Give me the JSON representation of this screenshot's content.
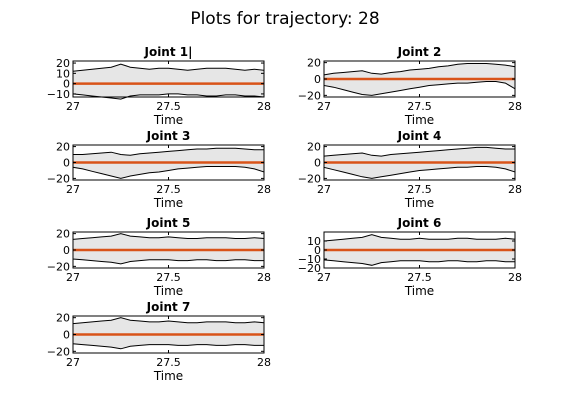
{
  "figure_title": "Plots for trajectory: 28",
  "chart_data": [
    {
      "type": "area",
      "title": "Joint 1|",
      "xlabel": "Time",
      "xlim": [
        27,
        28
      ],
      "ylim": [
        -13,
        22
      ],
      "xticks": [
        27,
        27.5,
        28
      ],
      "yticks": [
        20,
        10,
        0,
        -10
      ],
      "x": [
        27,
        27.05,
        27.1,
        27.15,
        27.2,
        27.25,
        27.3,
        27.35,
        27.4,
        27.45,
        27.5,
        27.55,
        27.6,
        27.65,
        27.7,
        27.75,
        27.8,
        27.85,
        27.9,
        27.95,
        28
      ],
      "series": [
        {
          "role": "upper",
          "values": [
            12,
            13,
            14,
            15,
            16,
            19,
            16,
            15,
            14,
            15,
            15,
            14,
            13,
            14,
            15,
            15,
            15,
            14,
            13,
            14,
            13
          ]
        },
        {
          "role": "mean",
          "values": [
            0,
            0,
            0,
            0,
            0,
            0,
            0,
            0,
            0,
            0,
            0,
            0,
            0,
            0,
            0,
            0,
            0,
            0,
            0,
            0,
            0
          ]
        },
        {
          "role": "lower",
          "values": [
            -10,
            -11,
            -12,
            -13,
            -14,
            -15,
            -12,
            -11,
            -11,
            -11,
            -10,
            -10,
            -11,
            -11,
            -12,
            -12,
            -11,
            -11,
            -12,
            -12,
            -13
          ]
        }
      ]
    },
    {
      "type": "area",
      "title": "Joint 2",
      "xlabel": "Time",
      "xlim": [
        27,
        28
      ],
      "ylim": [
        -22,
        22
      ],
      "xticks": [
        27,
        27.5,
        28
      ],
      "yticks": [
        20,
        0,
        -20
      ],
      "x": [
        27,
        27.05,
        27.1,
        27.15,
        27.2,
        27.25,
        27.3,
        27.35,
        27.4,
        27.45,
        27.5,
        27.55,
        27.6,
        27.65,
        27.7,
        27.75,
        27.8,
        27.85,
        27.9,
        27.95,
        28
      ],
      "series": [
        {
          "role": "upper",
          "values": [
            5,
            7,
            8,
            9,
            10,
            7,
            6,
            8,
            9,
            11,
            12,
            13,
            15,
            16,
            18,
            19,
            19,
            19,
            18,
            17,
            15
          ]
        },
        {
          "role": "mean",
          "values": [
            0,
            0,
            0,
            0,
            0,
            0,
            0,
            0,
            0,
            0,
            0,
            0,
            0,
            0,
            0,
            0,
            0,
            0,
            0,
            0,
            0
          ]
        },
        {
          "role": "lower",
          "values": [
            -8,
            -10,
            -13,
            -16,
            -19,
            -20,
            -18,
            -16,
            -14,
            -12,
            -10,
            -8,
            -7,
            -6,
            -5,
            -5,
            -4,
            -3,
            -3,
            -5,
            -12
          ]
        }
      ]
    },
    {
      "type": "area",
      "title": "Joint 3",
      "xlabel": "Time",
      "xlim": [
        27,
        28
      ],
      "ylim": [
        -22,
        22
      ],
      "xticks": [
        27,
        27.5,
        28
      ],
      "yticks": [
        20,
        0,
        -20
      ],
      "x": [
        27,
        27.05,
        27.1,
        27.15,
        27.2,
        27.25,
        27.3,
        27.35,
        27.4,
        27.45,
        27.5,
        27.55,
        27.6,
        27.65,
        27.7,
        27.75,
        27.8,
        27.85,
        27.9,
        27.95,
        28
      ],
      "series": [
        {
          "role": "upper",
          "values": [
            10,
            10,
            11,
            12,
            13,
            10,
            9,
            11,
            12,
            13,
            14,
            15,
            16,
            17,
            17,
            18,
            18,
            18,
            17,
            16,
            16
          ]
        },
        {
          "role": "mean",
          "values": [
            0,
            0,
            0,
            0,
            0,
            0,
            0,
            0,
            0,
            0,
            0,
            0,
            0,
            0,
            0,
            0,
            0,
            0,
            0,
            0,
            0
          ]
        },
        {
          "role": "lower",
          "values": [
            -6,
            -8,
            -11,
            -14,
            -17,
            -20,
            -17,
            -15,
            -13,
            -12,
            -10,
            -8,
            -7,
            -6,
            -5,
            -5,
            -5,
            -5,
            -6,
            -8,
            -12
          ]
        }
      ]
    },
    {
      "type": "area",
      "title": "Joint 4",
      "xlabel": "Time",
      "xlim": [
        27,
        28
      ],
      "ylim": [
        -22,
        22
      ],
      "xticks": [
        27,
        27.5,
        28
      ],
      "yticks": [
        20,
        0,
        -20
      ],
      "x": [
        27,
        27.05,
        27.1,
        27.15,
        27.2,
        27.25,
        27.3,
        27.35,
        27.4,
        27.45,
        27.5,
        27.55,
        27.6,
        27.65,
        27.7,
        27.75,
        27.8,
        27.85,
        27.9,
        27.95,
        28
      ],
      "series": [
        {
          "role": "upper",
          "values": [
            8,
            9,
            10,
            11,
            12,
            9,
            8,
            10,
            11,
            12,
            13,
            14,
            15,
            16,
            17,
            18,
            19,
            19,
            18,
            17,
            17
          ]
        },
        {
          "role": "mean",
          "values": [
            0,
            0,
            0,
            0,
            0,
            0,
            0,
            0,
            0,
            0,
            0,
            0,
            0,
            0,
            0,
            0,
            0,
            0,
            0,
            0,
            0
          ]
        },
        {
          "role": "lower",
          "values": [
            -6,
            -9,
            -12,
            -15,
            -18,
            -20,
            -18,
            -16,
            -14,
            -12,
            -10,
            -9,
            -8,
            -7,
            -6,
            -6,
            -5,
            -5,
            -6,
            -8,
            -12
          ]
        }
      ]
    },
    {
      "type": "area",
      "title": "Joint 5",
      "xlabel": "Time",
      "xlim": [
        27,
        28
      ],
      "ylim": [
        -22,
        22
      ],
      "xticks": [
        27,
        27.5,
        28
      ],
      "yticks": [
        20,
        0,
        -20
      ],
      "x": [
        27,
        27.05,
        27.1,
        27.15,
        27.2,
        27.25,
        27.3,
        27.35,
        27.4,
        27.45,
        27.5,
        27.55,
        27.6,
        27.65,
        27.7,
        27.75,
        27.8,
        27.85,
        27.9,
        27.95,
        28
      ],
      "series": [
        {
          "role": "upper",
          "values": [
            13,
            14,
            15,
            16,
            17,
            20,
            17,
            16,
            15,
            15,
            16,
            15,
            14,
            14,
            15,
            15,
            15,
            14,
            14,
            15,
            14
          ]
        },
        {
          "role": "mean",
          "values": [
            0,
            0,
            0,
            0,
            0,
            0,
            0,
            0,
            0,
            0,
            0,
            0,
            0,
            0,
            0,
            0,
            0,
            0,
            0,
            0,
            0
          ]
        },
        {
          "role": "lower",
          "values": [
            -11,
            -12,
            -13,
            -14,
            -15,
            -17,
            -14,
            -13,
            -12,
            -12,
            -12,
            -13,
            -13,
            -12,
            -12,
            -13,
            -13,
            -12,
            -12,
            -13,
            -13
          ]
        }
      ]
    },
    {
      "type": "area",
      "title": "Joint 6",
      "xlabel": "Time",
      "xlim": [
        27,
        28
      ],
      "ylim": [
        -20,
        20
      ],
      "xticks": [
        27,
        27.5,
        28
      ],
      "yticks": [
        10,
        0,
        -10,
        -20
      ],
      "x": [
        27,
        27.05,
        27.1,
        27.15,
        27.2,
        27.25,
        27.3,
        27.35,
        27.4,
        27.45,
        27.5,
        27.55,
        27.6,
        27.65,
        27.7,
        27.75,
        27.8,
        27.85,
        27.9,
        27.95,
        28
      ],
      "series": [
        {
          "role": "upper",
          "values": [
            10,
            11,
            12,
            13,
            14,
            17,
            14,
            13,
            12,
            12,
            13,
            12,
            12,
            12,
            13,
            13,
            12,
            12,
            12,
            13,
            12
          ]
        },
        {
          "role": "mean",
          "values": [
            0,
            0,
            0,
            0,
            0,
            0,
            0,
            0,
            0,
            0,
            0,
            0,
            0,
            0,
            0,
            0,
            0,
            0,
            0,
            0,
            0
          ]
        },
        {
          "role": "lower",
          "values": [
            -11,
            -12,
            -13,
            -14,
            -15,
            -17,
            -14,
            -13,
            -12,
            -12,
            -12,
            -13,
            -13,
            -12,
            -12,
            -13,
            -13,
            -12,
            -12,
            -13,
            -13
          ]
        }
      ]
    },
    {
      "type": "area",
      "title": "Joint 7",
      "xlabel": "Time",
      "xlim": [
        27,
        28
      ],
      "ylim": [
        -22,
        22
      ],
      "xticks": [
        27,
        27.5,
        28
      ],
      "yticks": [
        20,
        0,
        -20
      ],
      "x": [
        27,
        27.05,
        27.1,
        27.15,
        27.2,
        27.25,
        27.3,
        27.35,
        27.4,
        27.45,
        27.5,
        27.55,
        27.6,
        27.65,
        27.7,
        27.75,
        27.8,
        27.85,
        27.9,
        27.95,
        28
      ],
      "series": [
        {
          "role": "upper",
          "values": [
            13,
            14,
            15,
            16,
            17,
            20,
            17,
            16,
            15,
            15,
            16,
            15,
            14,
            14,
            15,
            15,
            15,
            14,
            14,
            15,
            14
          ]
        },
        {
          "role": "mean",
          "values": [
            0,
            0,
            0,
            0,
            0,
            0,
            0,
            0,
            0,
            0,
            0,
            0,
            0,
            0,
            0,
            0,
            0,
            0,
            0,
            0,
            0
          ]
        },
        {
          "role": "lower",
          "values": [
            -11,
            -12,
            -13,
            -14,
            -15,
            -17,
            -14,
            -13,
            -12,
            -12,
            -12,
            -13,
            -13,
            -12,
            -12,
            -13,
            -13,
            -12,
            -12,
            -13,
            -13
          ]
        }
      ]
    }
  ]
}
